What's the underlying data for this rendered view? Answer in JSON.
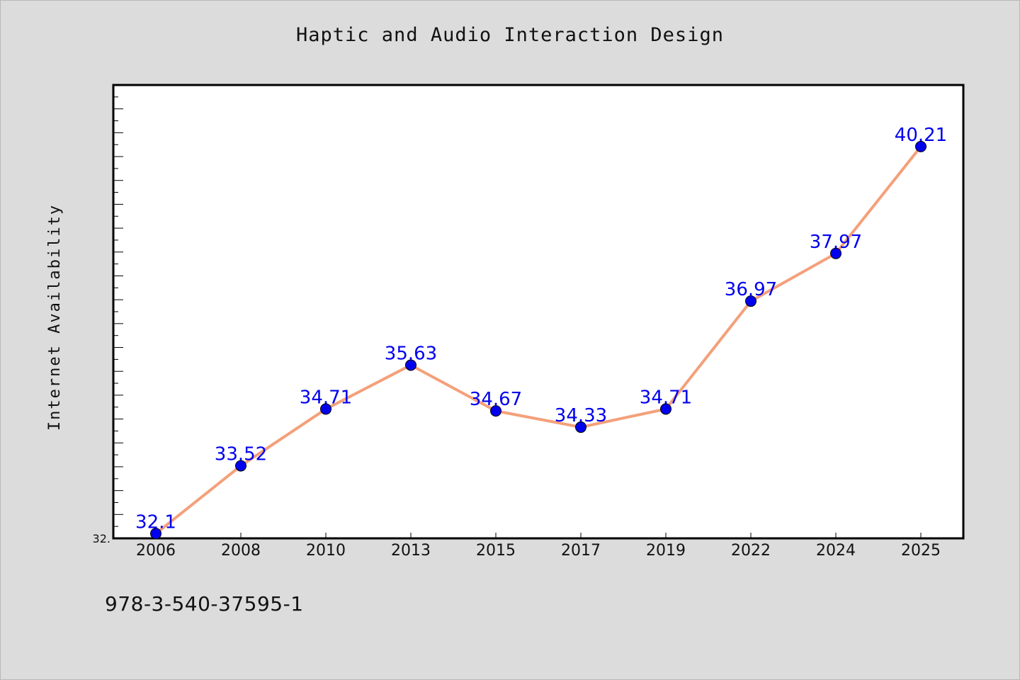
{
  "title": "Haptic and Audio Interaction Design",
  "footnote": "978-3-540-37595-1",
  "chart_data": {
    "type": "line",
    "title": "Haptic and Audio Interaction Design",
    "xlabel": "",
    "ylabel": "Internet Availability",
    "categories": [
      "2006",
      "2008",
      "2010",
      "2013",
      "2015",
      "2017",
      "2019",
      "2022",
      "2024",
      "2025"
    ],
    "series": [
      {
        "values": [
          32.1,
          33.52,
          34.71,
          35.63,
          34.67,
          34.33,
          34.71,
          36.97,
          37.97,
          40.21
        ],
        "labels": [
          "32.1",
          "33.52",
          "34.71",
          "35.63",
          "34.67",
          "34.33",
          "34.71",
          "36.97",
          "37.97",
          "40.21"
        ],
        "line_color": "#f4a07a",
        "marker_color": "#0000ee"
      }
    ],
    "ylim": [
      32.0,
      41.5
    ],
    "y_min_tick_label": "32.",
    "grid": false,
    "legend": "none",
    "background": "#ffffff"
  }
}
